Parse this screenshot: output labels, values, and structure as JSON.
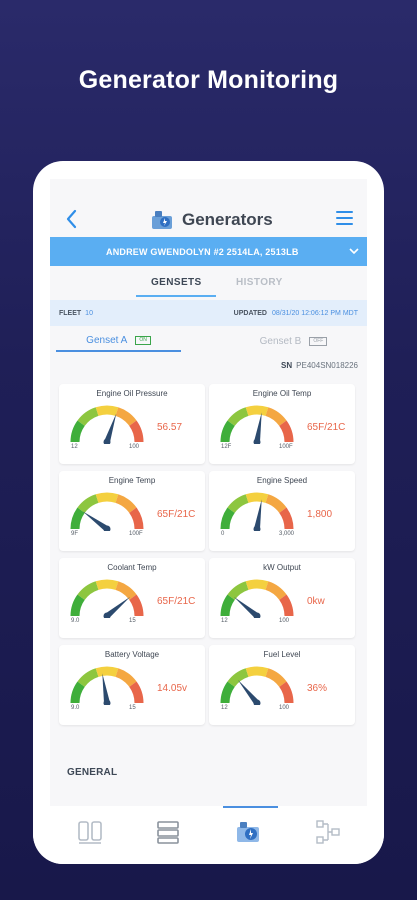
{
  "headline": "Generator Monitoring",
  "nav": {
    "title": "Generators",
    "back_icon": "chevron-left-icon",
    "menu_icon": "hamburger-menu-icon",
    "title_icon": "generator-icon"
  },
  "site": {
    "name": "ANDREW GWENDOLYN #2 2514LA,    2513LB"
  },
  "tabs": {
    "gensets": "GENSETS",
    "history": "HISTORY"
  },
  "fleet": {
    "label": "FLEET",
    "value": "10",
    "updated_label": "UPDATED",
    "updated_value": "08/31/20 12:06:12 PM MDT"
  },
  "gensets": [
    {
      "label": "Genset A",
      "status": "ON"
    },
    {
      "label": "Genset B",
      "status": "OFF"
    }
  ],
  "serial": {
    "label": "SN",
    "value": "PE404SN018226"
  },
  "gauges": [
    {
      "title": "Engine Oil Pressure",
      "value": "56.57",
      "min": "12",
      "max": "100",
      "level": 0.6
    },
    {
      "title": "Engine Oil Temp",
      "value": "65F/21C",
      "min": "12F",
      "max": "100F",
      "level": 0.55
    },
    {
      "title": "Engine Temp",
      "value": "65F/21C",
      "min": "9F",
      "max": "100F",
      "level": 0.2
    },
    {
      "title": "Engine Speed",
      "value": "1,800",
      "min": "0",
      "max": "3,000",
      "level": 0.55
    },
    {
      "title": "Coolant Temp",
      "value": "65F/21C",
      "min": "9.0",
      "max": "15",
      "level": 0.78
    },
    {
      "title": "kW Output",
      "value": "0kw",
      "min": "12",
      "max": "100",
      "level": 0.22
    },
    {
      "title": "Battery Voltage",
      "value": "14.05v",
      "min": "9.0",
      "max": "15",
      "level": 0.45
    },
    {
      "title": "Fuel Level",
      "value": "36%",
      "min": "12",
      "max": "100",
      "level": 0.28
    }
  ],
  "section": {
    "general": "GENERAL"
  },
  "colors": {
    "accent": "#5aaef2",
    "value": "#e8664a",
    "background": "#1f1f57"
  }
}
